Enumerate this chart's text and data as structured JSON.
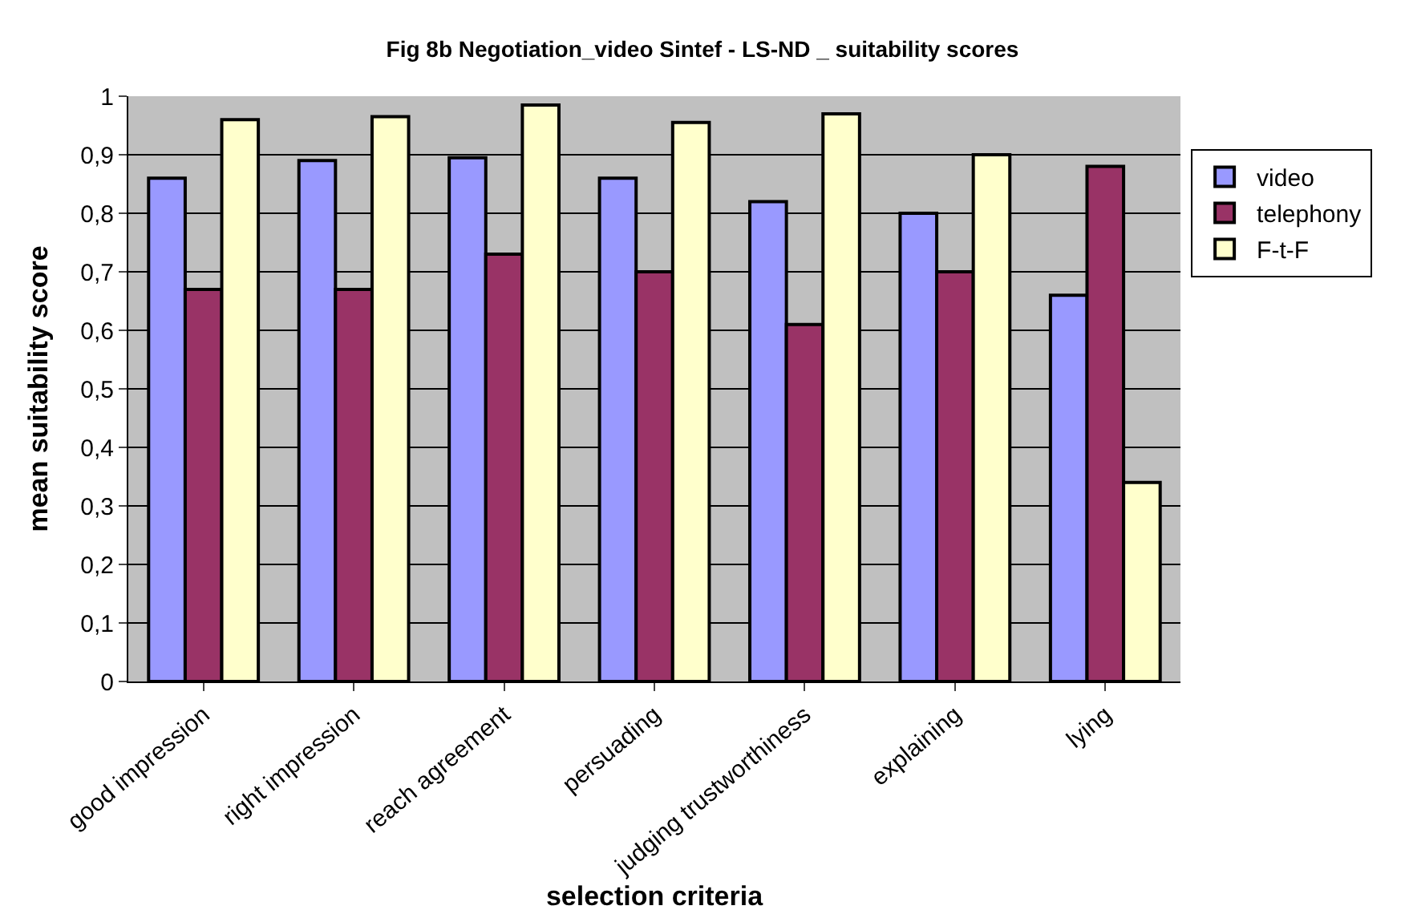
{
  "chart_data": {
    "type": "bar",
    "title": "Fig 8b Negotiation_video Sintef - LS-ND _ suitability scores",
    "xlabel": "selection criteria",
    "ylabel": "mean suitability score",
    "categories": [
      "good impression",
      "right impression",
      "reach agreement",
      "persuading",
      "judging trustworthiness",
      "explaining",
      "lying"
    ],
    "series": [
      {
        "name": "video",
        "color": "#9999ff",
        "values": [
          0.86,
          0.89,
          0.895,
          0.86,
          0.82,
          0.8,
          0.66
        ]
      },
      {
        "name": "telephony",
        "color": "#993366",
        "values": [
          0.67,
          0.67,
          0.73,
          0.7,
          0.61,
          0.7,
          0.88
        ]
      },
      {
        "name": "F-t-F",
        "color": "#ffffcc",
        "values": [
          0.96,
          0.965,
          0.985,
          0.955,
          0.97,
          0.9,
          0.34
        ]
      }
    ],
    "ylim": [
      0,
      1
    ],
    "yticks": [
      0,
      {
        "value": 0.1,
        "label": "0,1"
      },
      {
        "value": 0.2,
        "label": "0,2"
      },
      {
        "value": 0.3,
        "label": "0,3"
      },
      {
        "value": 0.4,
        "label": "0,4"
      },
      {
        "value": 0.5,
        "label": "0,5"
      },
      {
        "value": 0.6,
        "label": "0,6"
      },
      {
        "value": 0.7,
        "label": "0,7"
      },
      {
        "value": 0.8,
        "label": "0,8"
      },
      {
        "value": 0.9,
        "label": "0,9"
      },
      1
    ],
    "grid": "y",
    "legend": "right"
  }
}
